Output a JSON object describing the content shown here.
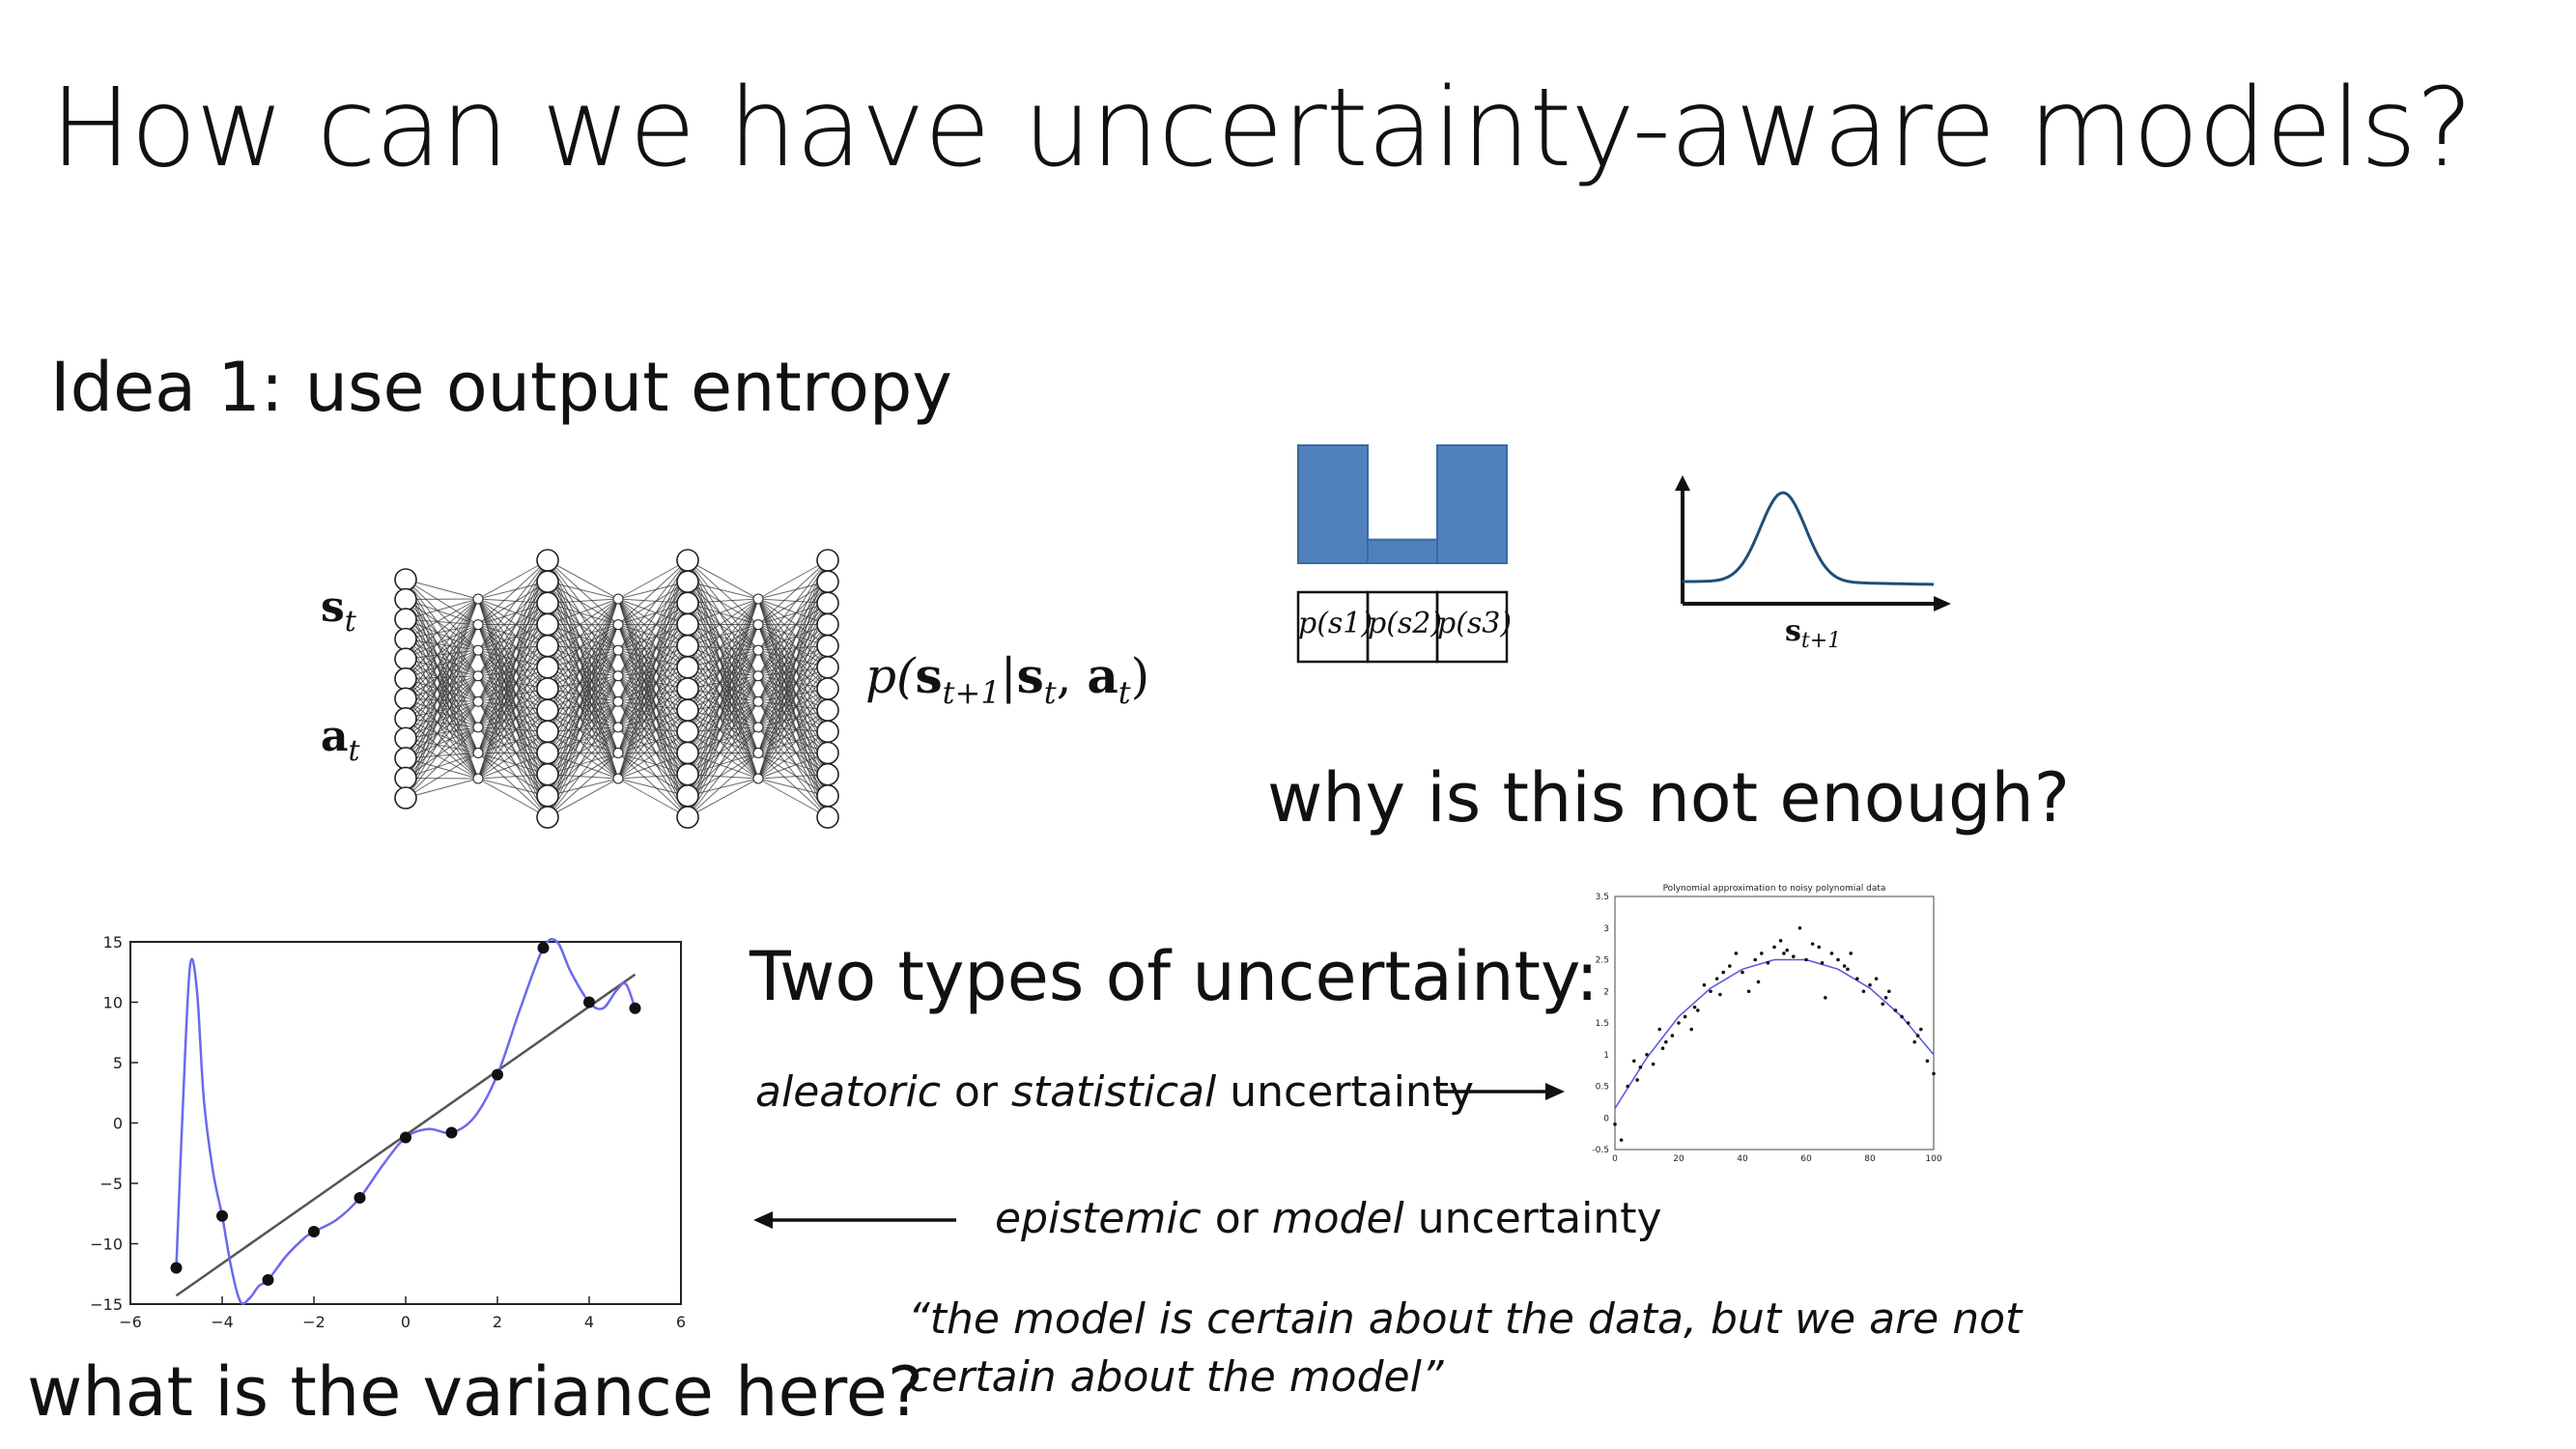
{
  "slide": {
    "title": "How can we have uncertainty-aware models?",
    "idea": "Idea 1: use output entropy",
    "question_enough": "why is this not enough?",
    "two_types": "Two types of uncertainty:",
    "aleatoric": {
      "a": "aleatoric",
      "b": " or ",
      "c": "statistical",
      "d": " uncertainty"
    },
    "epistemic": {
      "a": "epistemic",
      "b": " or ",
      "c": "model",
      "d": " uncertainty"
    },
    "quote_line1": "“the model is certain about the data, but we are not",
    "quote_line2": "certain about the model”",
    "variance_question": "what is the variance here?"
  },
  "network": {
    "input_s": "s",
    "input_s_sub": "t",
    "input_a": "a",
    "input_a_sub": "t",
    "output": {
      "p": "p(",
      "s": "s",
      "sub": "t+1",
      "bar": "|",
      "s2": "s",
      "sub2": "t",
      "comma": ", ",
      "a": "a",
      "sub3": "t",
      "close": ")"
    },
    "layers": [
      12,
      8,
      13,
      8,
      13,
      8,
      13
    ]
  },
  "histogram": {
    "labels": [
      "p(s1)",
      "p(s2)",
      "p(s3)"
    ],
    "values": [
      1.0,
      0.2,
      1.0
    ],
    "color": "#4f81bd"
  },
  "bell": {
    "xlabel_main": "s",
    "xlabel_sub": "t+1",
    "color": "#1f4e79"
  },
  "chart_data": [
    {
      "type": "scatter",
      "title": "",
      "xlim": [
        -6,
        6
      ],
      "ylim": [
        -15,
        15
      ],
      "xticks": [
        "−6",
        "−4",
        "−2",
        "0",
        "2",
        "4",
        "6"
      ],
      "yticks": [
        "15",
        "10",
        "5",
        "0",
        "−5",
        "−10",
        "−15"
      ],
      "points_x": [
        -5,
        -4,
        -3,
        -2,
        -1,
        0,
        1,
        2,
        3,
        4,
        5
      ],
      "points_y": [
        -12,
        -7.7,
        -13,
        -9,
        -6.2,
        -1.2,
        -0.8,
        4,
        14.5,
        10,
        9.5
      ],
      "fit_line": {
        "x": [
          -5,
          5
        ],
        "y": [
          -14.3,
          12.3
        ],
        "color": "#555555"
      },
      "overfit_curve": {
        "x": [
          -5,
          -4.85,
          -4.7,
          -4.55,
          -4.4,
          -4.2,
          -4.0,
          -3.8,
          -3.6,
          -3.4,
          -3.2,
          -3.0,
          -2.6,
          -2.2,
          -2.0,
          -1.5,
          -1.0,
          -0.5,
          0,
          0.5,
          1,
          1.5,
          2,
          2.5,
          3,
          3.3,
          3.6,
          4,
          4.3,
          4.6,
          4.8,
          5
        ],
        "y": [
          -12,
          2,
          13,
          11,
          2,
          -4,
          -7.7,
          -12,
          -14.8,
          -14.5,
          -13.5,
          -13,
          -11,
          -9.5,
          -9,
          -8,
          -6.2,
          -3.5,
          -1.2,
          -0.5,
          -0.8,
          0.5,
          4,
          9.5,
          14.5,
          15,
          12.5,
          10,
          9.5,
          11,
          11.5,
          9.5
        ],
        "color": "#6a6aee"
      }
    },
    {
      "type": "scatter",
      "title": "Polynomial approximation to noisy polynomial data",
      "xlim": [
        0,
        100
      ],
      "ylim": [
        -0.5,
        3.5
      ],
      "xticks": [
        "0",
        "20",
        "40",
        "60",
        "80",
        "100"
      ],
      "yticks": [
        "3.5",
        "3",
        "2.5",
        "2",
        "1.5",
        "1",
        "0.5",
        "0",
        "-0.5"
      ],
      "points_x": [
        0,
        2,
        4,
        6,
        8,
        10,
        12,
        14,
        16,
        18,
        20,
        22,
        24,
        26,
        28,
        30,
        32,
        34,
        36,
        38,
        40,
        42,
        44,
        46,
        48,
        50,
        52,
        54,
        56,
        58,
        60,
        62,
        64,
        66,
        68,
        70,
        72,
        74,
        76,
        78,
        80,
        82,
        84,
        86,
        88,
        90,
        92,
        94,
        96,
        98,
        100,
        7,
        15,
        25,
        33,
        45,
        53,
        65,
        73,
        85,
        95
      ],
      "points_y": [
        -0.1,
        -0.35,
        0.5,
        0.9,
        0.8,
        1.0,
        0.85,
        1.4,
        1.2,
        1.3,
        1.5,
        1.6,
        1.4,
        1.7,
        2.1,
        2.0,
        2.2,
        2.3,
        2.4,
        2.6,
        2.3,
        2.0,
        2.5,
        2.6,
        2.45,
        2.7,
        2.8,
        2.65,
        2.55,
        3.0,
        2.5,
        2.75,
        2.7,
        1.9,
        2.6,
        2.5,
        2.4,
        2.6,
        2.2,
        2.0,
        2.1,
        2.2,
        1.8,
        2.0,
        1.7,
        1.6,
        1.5,
        1.2,
        1.4,
        0.9,
        0.7,
        0.6,
        1.1,
        1.75,
        1.95,
        2.15,
        2.6,
        2.45,
        2.35,
        1.9,
        1.3
      ],
      "curve": {
        "x": [
          0,
          10,
          20,
          30,
          40,
          50,
          60,
          70,
          80,
          90,
          100
        ],
        "y": [
          0.15,
          0.95,
          1.6,
          2.05,
          2.35,
          2.5,
          2.5,
          2.35,
          2.05,
          1.6,
          1.0
        ],
        "color": "#5555dd"
      }
    }
  ]
}
